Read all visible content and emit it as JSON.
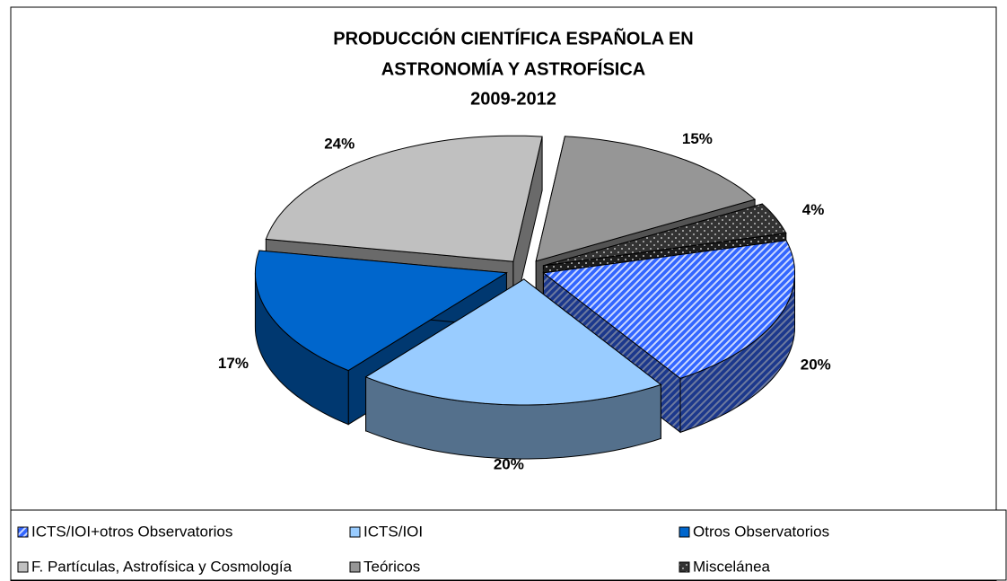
{
  "chart_data": {
    "type": "pie",
    "title": [
      "PRODUCCIÓN CIENTÍFICA ESPAÑOLA  EN",
      "ASTRONOMÍA Y ASTROFÍSICA",
      "2009-2012"
    ],
    "categories": [
      "ICTS/IOI+otros Observatorios",
      "ICTS/IOI",
      "Otros Observatorios",
      "F. Partículas, Astrofísica y Cosmología",
      "Teóricos",
      "Miscelánea"
    ],
    "values": [
      20,
      20,
      17,
      24,
      15,
      4
    ],
    "value_labels": [
      "20%",
      "20%",
      "17%",
      "24%",
      "15%",
      "4%"
    ],
    "colors": [
      "#3366ff",
      "#99ccff",
      "#0066cc",
      "#c0c0c0",
      "#969696",
      "#333333"
    ],
    "hatch": [
      "stripes",
      "none",
      "none",
      "none",
      "none",
      "checker"
    ],
    "legend": "bottom"
  }
}
